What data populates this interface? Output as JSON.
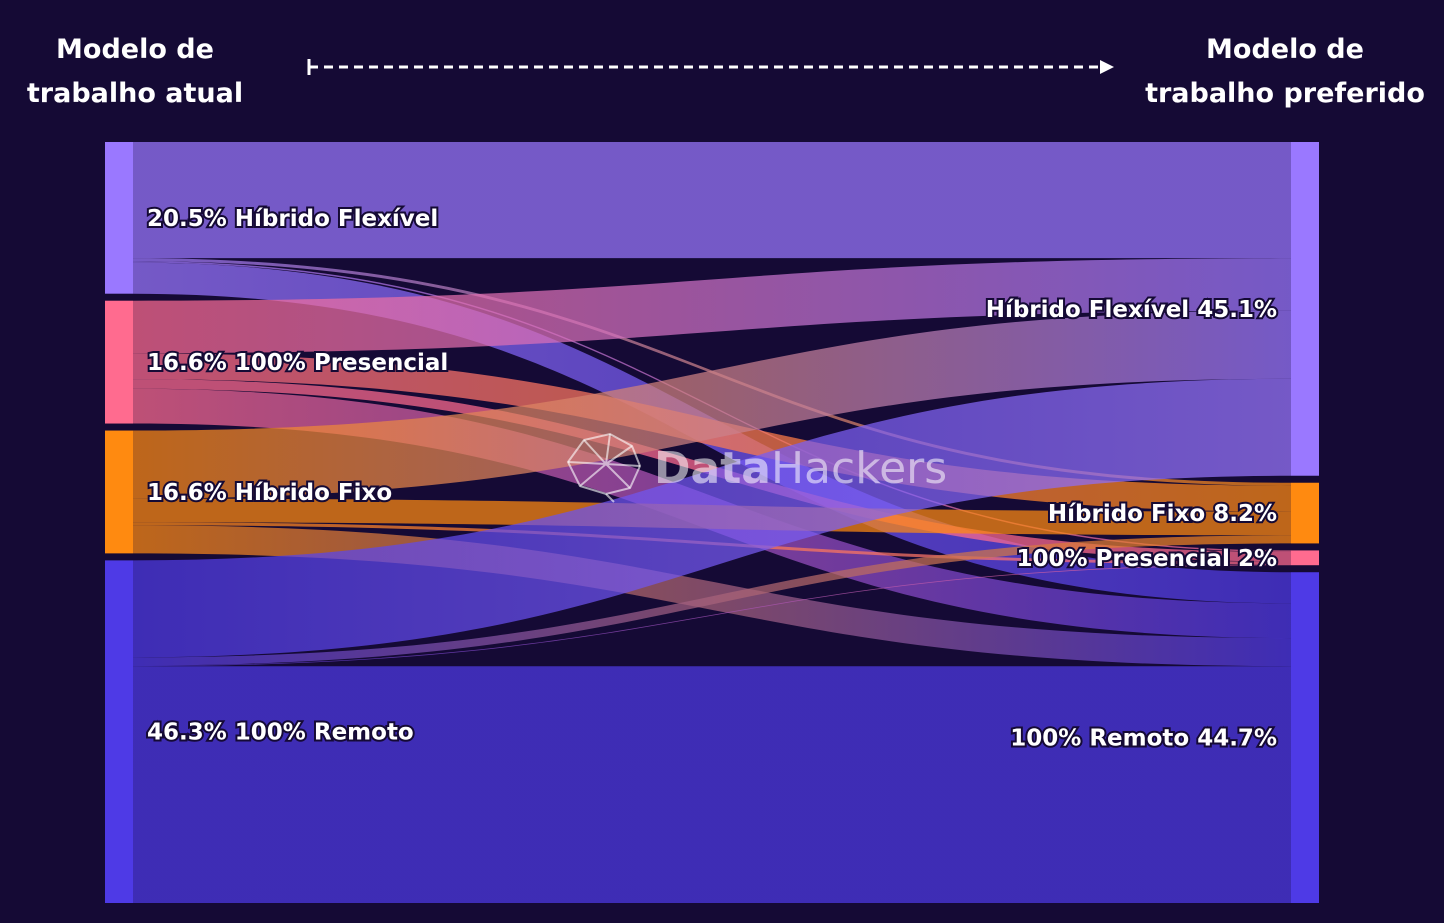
{
  "header": {
    "left": [
      "Modelo de",
      "trabalho atual"
    ],
    "right": [
      "Modelo de",
      "trabalho preferido"
    ]
  },
  "watermark": {
    "bold": "Data",
    "light": "Hackers"
  },
  "colors": {
    "background": "#150a35",
    "hibrido_flexivel": "#9a78ff",
    "presencial": "#ff6b8f",
    "hibrido_fixo": "#ff8a10",
    "remoto": "#4e3ae6"
  },
  "chart_data": {
    "type": "sankey",
    "title": "",
    "source_nodes": [
      {
        "id": "src_hflex",
        "label": "20.5% Híbrido Flexível",
        "value": 20.5,
        "color": "#9a78ff"
      },
      {
        "id": "src_pres",
        "label": "16.6% 100% Presencial",
        "value": 16.6,
        "color": "#ff6b8f"
      },
      {
        "id": "src_hfixo",
        "label": "16.6% Híbrido Fixo",
        "value": 16.6,
        "color": "#ff8a10"
      },
      {
        "id": "src_rem",
        "label": "46.3% 100% Remoto",
        "value": 46.3,
        "color": "#4e3ae6"
      }
    ],
    "target_nodes": [
      {
        "id": "tgt_hflex",
        "label": "Híbrido Flexível 45.1%",
        "value": 45.1,
        "color": "#9a78ff"
      },
      {
        "id": "tgt_hfixo",
        "label": "Híbrido Fixo 8.2%",
        "value": 8.2,
        "color": "#ff8a10"
      },
      {
        "id": "tgt_pres",
        "label": "100% Presencial 2%",
        "value": 2.0,
        "color": "#ff6b8f"
      },
      {
        "id": "tgt_rem",
        "label": "100% Remoto 44.7%",
        "value": 44.7,
        "color": "#4e3ae6"
      }
    ],
    "links": [
      {
        "source": "src_hflex",
        "target": "tgt_hflex",
        "value": 15.7
      },
      {
        "source": "src_hflex",
        "target": "tgt_hfixo",
        "value": 0.4
      },
      {
        "source": "src_hflex",
        "target": "tgt_pres",
        "value": 0.2
      },
      {
        "source": "src_hflex",
        "target": "tgt_rem",
        "value": 4.2
      },
      {
        "source": "src_pres",
        "target": "tgt_hflex",
        "value": 7.1
      },
      {
        "source": "src_pres",
        "target": "tgt_hfixo",
        "value": 3.5
      },
      {
        "source": "src_pres",
        "target": "tgt_pres",
        "value": 1.3
      },
      {
        "source": "src_pres",
        "target": "tgt_rem",
        "value": 4.7
      },
      {
        "source": "src_hfixo",
        "target": "tgt_hflex",
        "value": 9.2
      },
      {
        "source": "src_hfixo",
        "target": "tgt_hfixo",
        "value": 3.2
      },
      {
        "source": "src_hfixo",
        "target": "tgt_pres",
        "value": 0.4
      },
      {
        "source": "src_hfixo",
        "target": "tgt_rem",
        "value": 3.8
      },
      {
        "source": "src_rem",
        "target": "tgt_hflex",
        "value": 13.1
      },
      {
        "source": "src_rem",
        "target": "tgt_hfixo",
        "value": 1.1
      },
      {
        "source": "src_rem",
        "target": "tgt_pres",
        "value": 0.1
      },
      {
        "source": "src_rem",
        "target": "tgt_rem",
        "value": 32.0
      }
    ]
  }
}
